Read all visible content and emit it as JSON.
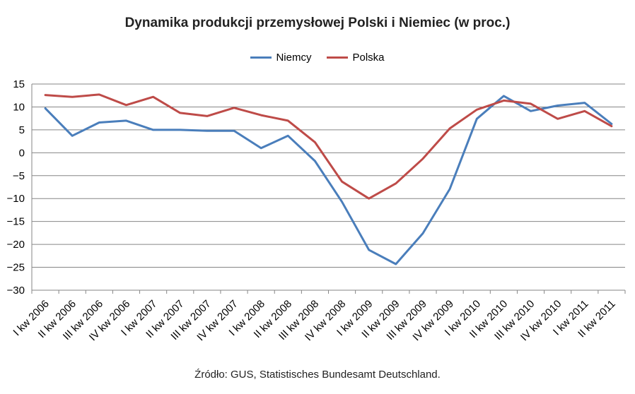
{
  "chart_data": {
    "type": "line",
    "title": "Dynamika produkcji przemysłowej Polski i Niemiec (w proc.)",
    "xlabel": "",
    "ylabel": "",
    "ylim": [
      -30,
      15
    ],
    "yticks": [
      15,
      10,
      5,
      0,
      -5,
      -10,
      -15,
      -20,
      -25,
      -30
    ],
    "grid": true,
    "legend_position": "top-center",
    "categories": [
      "I kw 2006",
      "II kw 2006",
      "III kw 2006",
      "IV kw 2006",
      "I kw 2007",
      "II kw 2007",
      "III kw 2007",
      "IV kw 2007",
      "I kw 2008",
      "II kw 2008",
      "III kw 2008",
      "IV kw 2008",
      "I kw 2009",
      "II kw 2009",
      "III kw 2009",
      "IV kw 2009",
      "I kw 2010",
      "II kw 2010",
      "III kw 2010",
      "IV kw 2010",
      "I kw 2011",
      "II kw 2011"
    ],
    "series": [
      {
        "name": "Niemcy",
        "color": "#4a7ebb",
        "values": [
          9.7,
          3.7,
          6.6,
          7.0,
          5.0,
          5.0,
          4.8,
          4.8,
          1.0,
          3.7,
          -1.8,
          -10.7,
          -21.2,
          -24.3,
          -17.6,
          -7.9,
          7.4,
          12.4,
          9.1,
          10.3,
          10.9,
          6.3
        ]
      },
      {
        "name": "Polska",
        "color": "#be4b48",
        "values": [
          12.6,
          12.2,
          12.7,
          10.4,
          12.2,
          8.7,
          8.0,
          9.8,
          8.2,
          7.0,
          2.3,
          -6.3,
          -10.0,
          -6.7,
          -1.3,
          5.3,
          9.4,
          11.4,
          10.7,
          7.4,
          9.1,
          5.8
        ]
      }
    ]
  },
  "source": "Źródło: GUS, Statistisches Bundesamt Deutschland."
}
